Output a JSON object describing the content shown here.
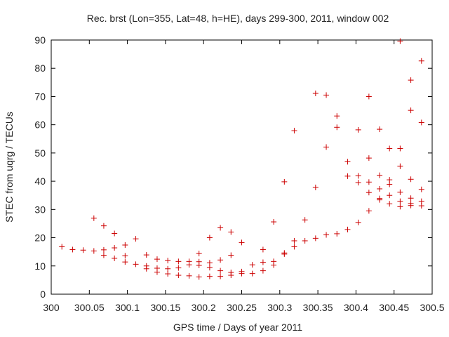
{
  "chart_data": {
    "type": "scatter",
    "title": "Rec. brst (Lon=355, Lat=48, h=HE), days 299-300, 2011, window 002",
    "xlabel": "GPS time / Days of year 2011",
    "ylabel": "STEC from uqrg / TECUs",
    "xlim": [
      300,
      300.5
    ],
    "ylim": [
      0,
      90
    ],
    "x_ticks": [
      "300",
      "300.05",
      "300.1",
      "300.15",
      "300.2",
      "300.25",
      "300.3",
      "300.35",
      "300.4",
      "300.45",
      "300.5"
    ],
    "y_ticks": [
      "0",
      "10",
      "20",
      "30",
      "40",
      "50",
      "60",
      "70",
      "80",
      "90"
    ],
    "grid": false,
    "marker": "+",
    "colors": {
      "marker": "#cc0000",
      "axis": "#000000",
      "text": "#222222"
    },
    "points": [
      [
        300.014,
        16.8
      ],
      [
        300.028,
        15.8
      ],
      [
        300.042,
        15.6
      ],
      [
        300.056,
        26.9
      ],
      [
        300.056,
        15.3
      ],
      [
        300.069,
        24.2
      ],
      [
        300.069,
        15.7
      ],
      [
        300.069,
        13.8
      ],
      [
        300.083,
        21.5
      ],
      [
        300.083,
        16.4
      ],
      [
        300.083,
        12.7
      ],
      [
        300.097,
        17.4
      ],
      [
        300.097,
        13.6
      ],
      [
        300.097,
        11.4
      ],
      [
        300.111,
        19.6
      ],
      [
        300.111,
        10.6
      ],
      [
        300.125,
        13.9
      ],
      [
        300.125,
        10.0
      ],
      [
        300.125,
        9.0
      ],
      [
        300.139,
        12.4
      ],
      [
        300.139,
        9.2
      ],
      [
        300.139,
        7.8
      ],
      [
        300.153,
        11.9
      ],
      [
        300.153,
        9.0
      ],
      [
        300.153,
        7.2
      ],
      [
        300.167,
        11.6
      ],
      [
        300.167,
        9.3
      ],
      [
        300.167,
        6.7
      ],
      [
        300.181,
        11.6
      ],
      [
        300.181,
        10.4
      ],
      [
        300.181,
        6.5
      ],
      [
        300.194,
        14.4
      ],
      [
        300.194,
        11.5
      ],
      [
        300.194,
        10.2
      ],
      [
        300.194,
        6.1
      ],
      [
        300.208,
        20.0
      ],
      [
        300.208,
        11.1
      ],
      [
        300.208,
        9.4
      ],
      [
        300.208,
        6.3
      ],
      [
        300.222,
        23.5
      ],
      [
        300.222,
        12.1
      ],
      [
        300.222,
        8.3
      ],
      [
        300.222,
        6.3
      ],
      [
        300.236,
        22.0
      ],
      [
        300.236,
        13.8
      ],
      [
        300.236,
        7.7
      ],
      [
        300.236,
        6.7
      ],
      [
        300.25,
        18.3
      ],
      [
        300.25,
        8.0
      ],
      [
        300.25,
        7.3
      ],
      [
        300.264,
        10.4
      ],
      [
        300.264,
        7.3
      ],
      [
        300.278,
        15.8
      ],
      [
        300.278,
        11.3
      ],
      [
        300.278,
        8.3
      ],
      [
        300.292,
        25.6
      ],
      [
        300.292,
        11.6
      ],
      [
        300.292,
        10.3
      ],
      [
        300.306,
        39.8
      ],
      [
        300.306,
        14.6
      ],
      [
        300.306,
        14.2
      ],
      [
        300.319,
        57.9
      ],
      [
        300.319,
        18.9
      ],
      [
        300.319,
        16.8
      ],
      [
        300.333,
        26.3
      ],
      [
        300.333,
        18.9
      ],
      [
        300.347,
        71.1
      ],
      [
        300.347,
        37.8
      ],
      [
        300.347,
        19.8
      ],
      [
        300.361,
        70.5
      ],
      [
        300.361,
        52.1
      ],
      [
        300.361,
        21.0
      ],
      [
        300.375,
        63.1
      ],
      [
        300.375,
        59.1
      ],
      [
        300.375,
        21.4
      ],
      [
        300.389,
        46.9
      ],
      [
        300.389,
        41.8
      ],
      [
        300.389,
        22.9
      ],
      [
        300.403,
        58.2
      ],
      [
        300.403,
        41.9
      ],
      [
        300.403,
        39.5
      ],
      [
        300.403,
        25.4
      ],
      [
        300.417,
        70.0
      ],
      [
        300.417,
        48.2
      ],
      [
        300.417,
        39.7
      ],
      [
        300.417,
        36.0
      ],
      [
        300.417,
        29.5
      ],
      [
        300.431,
        58.4
      ],
      [
        300.431,
        42.1
      ],
      [
        300.431,
        37.3
      ],
      [
        300.431,
        33.9
      ],
      [
        300.431,
        33.4
      ],
      [
        300.444,
        51.6
      ],
      [
        300.444,
        40.5
      ],
      [
        300.444,
        38.9
      ],
      [
        300.444,
        35.0
      ],
      [
        300.444,
        32.0
      ],
      [
        300.458,
        89.6
      ],
      [
        300.458,
        51.6
      ],
      [
        300.458,
        45.3
      ],
      [
        300.458,
        36.1
      ],
      [
        300.458,
        32.9
      ],
      [
        300.458,
        31.0
      ],
      [
        300.472,
        75.8
      ],
      [
        300.472,
        65.1
      ],
      [
        300.472,
        40.7
      ],
      [
        300.472,
        34.0
      ],
      [
        300.472,
        32.1
      ],
      [
        300.472,
        31.4
      ],
      [
        300.486,
        82.6
      ],
      [
        300.486,
        60.8
      ],
      [
        300.486,
        37.1
      ],
      [
        300.486,
        32.9
      ],
      [
        300.486,
        31.3
      ]
    ]
  }
}
